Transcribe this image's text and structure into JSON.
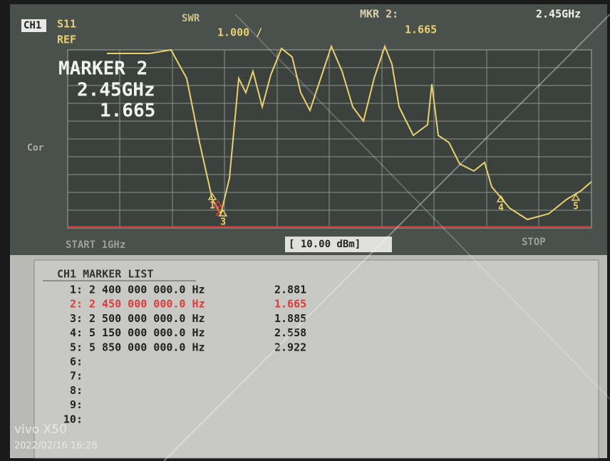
{
  "header": {
    "channel": "CH1",
    "param": "S11",
    "format": "SWR",
    "ref": "REF",
    "scale": "1.000 /",
    "marker_label": "MKR 2:",
    "marker_freq": "2.45GHz",
    "marker_value": "1.665",
    "cor": "Cor"
  },
  "marker_box": {
    "title": "MARKER 2",
    "freq": "2.45GHz",
    "value": "1.665"
  },
  "trace_markers": [
    "1",
    "2",
    "3",
    "4",
    "5"
  ],
  "footer": {
    "start": "START 1GHz",
    "power": "[ 10.00 dBm]",
    "stop": "STOP"
  },
  "marker_list": {
    "title": "CH1 MARKER LIST",
    "rows": [
      {
        "index": "1:",
        "frequency": "2 400 000 000.0 Hz",
        "value": "2.881",
        "color": "#222222"
      },
      {
        "index": "2:",
        "frequency": "2 450 000 000.0 Hz",
        "value": "1.665",
        "color": "#e03a3a"
      },
      {
        "index": "3:",
        "frequency": "2 500 000 000.0 Hz",
        "value": "1.885",
        "color": "#222222"
      },
      {
        "index": "4:",
        "frequency": "5 150 000 000.0 Hz",
        "value": "2.558",
        "color": "#222222"
      },
      {
        "index": "5:",
        "frequency": "5 850 000 000.0 Hz",
        "value": "2.922",
        "color": "#222222"
      },
      {
        "index": "6:",
        "color": "#222222"
      },
      {
        "index": "7:",
        "color": "#222222"
      },
      {
        "index": "8:",
        "color": "#222222"
      },
      {
        "index": "9:",
        "color": "#222222"
      },
      {
        "index": "10:",
        "color": "#222222"
      }
    ]
  },
  "watermark": {
    "brand": "vivo X50",
    "timestamp": "2022/02/16 16:28"
  }
}
